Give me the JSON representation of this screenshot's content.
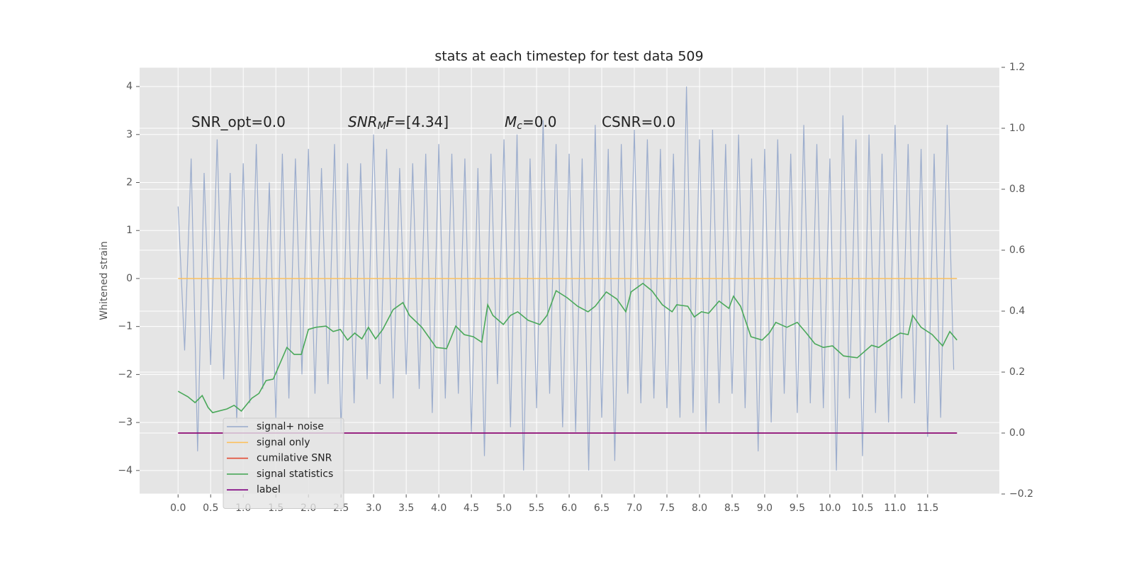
{
  "chart_data": {
    "type": "line",
    "title": "stats at each timestep for test data 509",
    "ylabel": "Whitened strain",
    "xlim": [
      -0.59,
      12.6
    ],
    "ylim": [
      -4.49,
      4.4
    ],
    "y2lim": [
      -0.2,
      1.2
    ],
    "xticks": [
      {
        "value": 0,
        "label": "0.0"
      },
      {
        "value": 0.5,
        "label": "0.5"
      },
      {
        "value": 1,
        "label": "1.0"
      },
      {
        "value": 1.5,
        "label": "1.5"
      },
      {
        "value": 2,
        "label": "2.0"
      },
      {
        "value": 2.5,
        "label": "2.5"
      },
      {
        "value": 3,
        "label": "3.0"
      },
      {
        "value": 3.5,
        "label": "3.5"
      },
      {
        "value": 4,
        "label": "4.0"
      },
      {
        "value": 4.5,
        "label": "4.5"
      },
      {
        "value": 5,
        "label": "5.0"
      },
      {
        "value": 5.5,
        "label": "5.5"
      },
      {
        "value": 6,
        "label": "6.0"
      },
      {
        "value": 6.5,
        "label": "6.5"
      },
      {
        "value": 7,
        "label": "7.0"
      },
      {
        "value": 7.5,
        "label": "7.5"
      },
      {
        "value": 8,
        "label": "8.0"
      },
      {
        "value": 8.5,
        "label": "8.5"
      },
      {
        "value": 9,
        "label": "9.0"
      },
      {
        "value": 9.5,
        "label": "9.5"
      },
      {
        "value": 10,
        "label": "10.0"
      },
      {
        "value": 10.5,
        "label": "10.5"
      },
      {
        "value": 11,
        "label": "11.0"
      },
      {
        "value": 11.5,
        "label": "11.5"
      }
    ],
    "yticks": [
      {
        "value": -4,
        "label": "−4"
      },
      {
        "value": -3,
        "label": "−3"
      },
      {
        "value": -2,
        "label": "−2"
      },
      {
        "value": -1,
        "label": "−1"
      },
      0,
      1,
      2,
      3,
      4
    ],
    "y2ticks": [
      {
        "value": -0.2,
        "label": "−0.2"
      },
      {
        "value": 0,
        "label": "0.0"
      },
      0.2,
      0.4,
      0.6,
      0.8,
      {
        "value": 1,
        "label": "1.0"
      },
      1.2
    ],
    "grid": true,
    "legend": "lower left",
    "annotations": [
      [
        {
          "text": "SNR_opt=0.0",
          "style": "plain"
        }
      ],
      [
        {
          "text": "SNR",
          "style": "italic"
        },
        {
          "text": "M",
          "style": "sub"
        },
        {
          "text": "F",
          "style": "italic"
        },
        {
          "text": "=[4.34]",
          "style": "plain"
        }
      ],
      [
        {
          "text": "M",
          "style": "italic"
        },
        {
          "text": "c",
          "style": "sub"
        },
        {
          "text": "=0.0",
          "style": "plain"
        }
      ],
      [
        {
          "text": "CSNR=0.0",
          "style": "plain"
        }
      ]
    ],
    "series": [
      {
        "name": "signal+ noise",
        "color": "#98aacb",
        "axis": "y",
        "x": [
          0.0,
          0.1,
          0.2,
          0.3,
          0.4,
          0.5,
          0.6,
          0.7,
          0.8,
          0.9,
          1.0,
          1.1,
          1.2,
          1.3,
          1.4,
          1.5,
          1.6,
          1.7,
          1.8,
          1.9,
          2.0,
          2.1,
          2.2,
          2.3,
          2.4,
          2.5,
          2.6,
          2.7,
          2.8,
          2.9,
          3.0,
          3.1,
          3.2,
          3.3,
          3.4,
          3.5,
          3.6,
          3.7,
          3.8,
          3.9,
          4.0,
          4.1,
          4.2,
          4.3,
          4.4,
          4.5,
          4.6,
          4.7,
          4.8,
          4.9,
          5.0,
          5.1,
          5.2,
          5.3,
          5.4,
          5.5,
          5.6,
          5.7,
          5.8,
          5.9,
          6.0,
          6.1,
          6.2,
          6.3,
          6.4,
          6.5,
          6.6,
          6.7,
          6.8,
          6.9,
          7.0,
          7.1,
          7.2,
          7.3,
          7.4,
          7.5,
          7.6,
          7.7,
          7.8,
          7.9,
          8.0,
          8.1,
          8.2,
          8.3,
          8.4,
          8.5,
          8.6,
          8.7,
          8.8,
          8.9,
          9.0,
          9.1,
          9.2,
          9.3,
          9.4,
          9.5,
          9.6,
          9.7,
          9.8,
          9.9,
          10.0,
          10.1,
          10.2,
          10.3,
          10.4,
          10.5,
          10.6,
          10.7,
          10.8,
          10.9,
          11.0,
          11.1,
          11.2,
          11.3,
          11.4,
          11.5,
          11.6,
          11.7,
          11.8,
          11.9
        ],
        "values": [
          1.5,
          -1.5,
          2.5,
          -3.6,
          2.2,
          -1.8,
          2.9,
          -2.1,
          2.2,
          -3.0,
          2.4,
          -2.6,
          2.8,
          -2.3,
          2.0,
          -2.9,
          2.6,
          -2.5,
          2.5,
          -2.0,
          2.7,
          -2.4,
          2.3,
          -2.2,
          2.8,
          -3.2,
          2.4,
          -2.6,
          2.4,
          -2.1,
          3.0,
          -2.2,
          2.7,
          -2.5,
          2.3,
          -2.0,
          2.4,
          -2.3,
          2.6,
          -2.8,
          2.8,
          -2.5,
          2.6,
          -2.4,
          2.5,
          -3.2,
          2.3,
          -3.7,
          2.6,
          -2.2,
          2.9,
          -3.1,
          3.0,
          -4.0,
          2.5,
          -2.7,
          3.3,
          -2.4,
          2.8,
          -3.1,
          2.6,
          -3.2,
          2.5,
          -4.0,
          3.2,
          -2.9,
          2.7,
          -3.8,
          2.8,
          -2.4,
          3.1,
          -2.6,
          2.9,
          -2.5,
          2.7,
          -2.7,
          2.6,
          -2.9,
          4.0,
          -2.8,
          2.9,
          -3.2,
          3.1,
          -2.6,
          2.8,
          -2.4,
          3.0,
          -2.7,
          2.5,
          -3.6,
          2.7,
          -3.0,
          2.9,
          -2.4,
          2.6,
          -2.8,
          3.2,
          -2.6,
          2.8,
          -2.7,
          2.5,
          -4.0,
          3.4,
          -2.5,
          2.9,
          -3.7,
          3.0,
          -2.8,
          2.6,
          -3.0,
          3.2,
          -2.5,
          2.8,
          -2.6,
          2.7,
          -3.3,
          2.6,
          -2.9,
          3.2,
          -1.9
        ]
      },
      {
        "name": "signal only",
        "color": "#fbc15e",
        "axis": "y",
        "x": [
          0.0,
          11.95
        ],
        "values": [
          0,
          0
        ]
      },
      {
        "name": "cumilative SNR",
        "color": "#e24a33",
        "axis": "y2",
        "x": [
          0.0,
          11.95
        ],
        "values": [
          0,
          0
        ]
      },
      {
        "name": "signal statistics",
        "color": "#4aa85a",
        "axis": "y2",
        "x": [
          0.0,
          0.15,
          0.26,
          0.37,
          0.46,
          0.53,
          0.75,
          0.86,
          0.97,
          1.13,
          1.24,
          1.35,
          1.46,
          1.67,
          1.78,
          1.89,
          2.0,
          2.11,
          2.27,
          2.38,
          2.49,
          2.6,
          2.71,
          2.82,
          2.92,
          3.03,
          3.14,
          3.3,
          3.45,
          3.55,
          3.74,
          3.96,
          4.12,
          4.26,
          4.39,
          4.53,
          4.66,
          4.75,
          4.83,
          4.99,
          5.1,
          5.21,
          5.37,
          5.55,
          5.66,
          5.8,
          5.97,
          6.13,
          6.29,
          6.4,
          6.57,
          6.73,
          6.87,
          6.95,
          7.13,
          7.27,
          7.43,
          7.58,
          7.65,
          7.82,
          7.92,
          8.03,
          8.14,
          8.3,
          8.45,
          8.52,
          8.63,
          8.79,
          8.96,
          9.07,
          9.17,
          9.34,
          9.5,
          9.64,
          9.77,
          9.9,
          10.04,
          10.21,
          10.42,
          10.64,
          10.75,
          10.91,
          11.08,
          11.2,
          11.27,
          11.4,
          11.57,
          11.73,
          11.84,
          11.95
        ],
        "values": [
          0.137,
          0.119,
          0.1,
          0.123,
          0.084,
          0.067,
          0.079,
          0.091,
          0.072,
          0.114,
          0.13,
          0.172,
          0.177,
          0.281,
          0.258,
          0.258,
          0.34,
          0.347,
          0.351,
          0.333,
          0.34,
          0.305,
          0.328,
          0.309,
          0.347,
          0.309,
          0.34,
          0.405,
          0.428,
          0.386,
          0.347,
          0.281,
          0.277,
          0.351,
          0.323,
          0.316,
          0.298,
          0.421,
          0.386,
          0.356,
          0.386,
          0.398,
          0.37,
          0.356,
          0.386,
          0.467,
          0.444,
          0.416,
          0.398,
          0.416,
          0.463,
          0.44,
          0.398,
          0.463,
          0.491,
          0.467,
          0.421,
          0.398,
          0.421,
          0.416,
          0.381,
          0.398,
          0.393,
          0.433,
          0.409,
          0.449,
          0.416,
          0.316,
          0.305,
          0.328,
          0.363,
          0.347,
          0.363,
          0.328,
          0.293,
          0.281,
          0.286,
          0.253,
          0.247,
          0.288,
          0.281,
          0.305,
          0.328,
          0.323,
          0.386,
          0.347,
          0.323,
          0.286,
          0.333,
          0.305
        ]
      },
      {
        "name": "label",
        "color": "#800080",
        "axis": "y2",
        "x": [
          0.0,
          11.95
        ],
        "values": [
          0,
          0
        ]
      }
    ]
  }
}
